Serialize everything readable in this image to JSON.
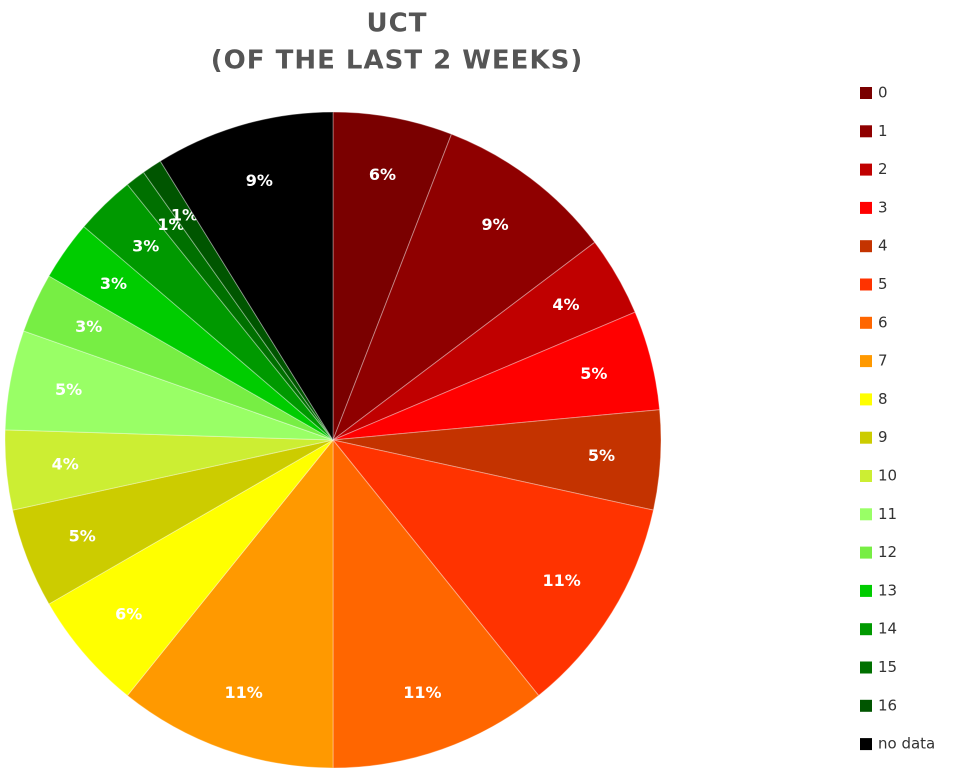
{
  "chart_data": {
    "type": "pie",
    "title": "UCT",
    "subtitle": "(OF THE LAST 2 WEEKS)",
    "categories": [
      "0",
      "1",
      "2",
      "3",
      "4",
      "5",
      "6",
      "7",
      "8",
      "9",
      "10",
      "11",
      "12",
      "13",
      "14",
      "15",
      "16",
      "no data"
    ],
    "values": [
      6,
      9,
      4,
      5,
      5,
      11,
      11,
      11,
      6,
      5,
      4,
      5,
      3,
      3,
      3,
      1,
      1,
      9
    ],
    "value_labels": [
      "6%",
      "9%",
      "4%",
      "5%",
      "5%",
      "11%",
      "11%",
      "11%",
      "6%",
      "5%",
      "4%",
      "5%",
      "3%",
      "3%",
      "3%",
      "1%",
      "1%",
      "9%"
    ],
    "colors": [
      "#7a0000",
      "#8f0000",
      "#c00000",
      "#ff0000",
      "#c43300",
      "#ff3300",
      "#ff6600",
      "#ff9900",
      "#ffff00",
      "#cccc00",
      "#ccee33",
      "#99ff66",
      "#77ee44",
      "#00cc00",
      "#009900",
      "#007000",
      "#005500",
      "#000000"
    ],
    "legend": "right"
  }
}
